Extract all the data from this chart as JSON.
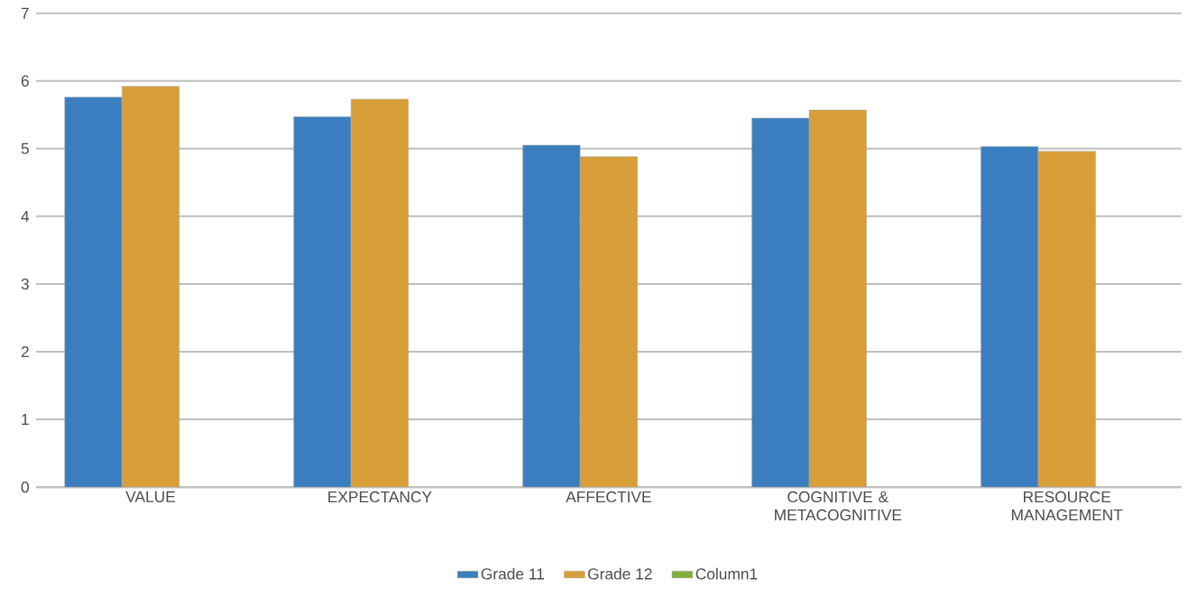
{
  "chart_data": {
    "type": "bar",
    "categories": [
      "VALUE",
      "EXPECTANCY",
      "AFFECTIVE",
      "COGNITIVE & METACOGNITIVE",
      "RESOURCE MANAGEMENT"
    ],
    "series": [
      {
        "name": "Grade 11",
        "color": "#3a7ebf",
        "values": [
          5.76,
          5.47,
          5.05,
          5.45,
          5.03
        ]
      },
      {
        "name": "Grade 12",
        "color": "#d89e38",
        "values": [
          5.92,
          5.73,
          4.88,
          5.57,
          4.96
        ]
      },
      {
        "name": "Column1",
        "color": "#7fb03e",
        "values": [
          null,
          null,
          null,
          null,
          null
        ]
      }
    ],
    "ylim": [
      0,
      7
    ],
    "yticks": [
      0,
      1,
      2,
      3,
      4,
      5,
      6,
      7
    ],
    "grid": "y",
    "legend": "bottom"
  }
}
